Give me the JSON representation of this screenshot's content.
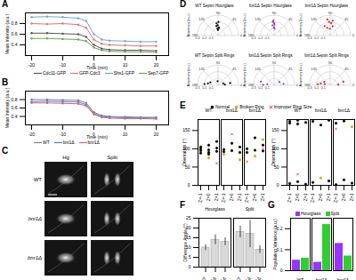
{
  "chart_data": [
    {
      "panel": "A",
      "type": "line",
      "x_label": "Time (min)",
      "y_label": "Mean Intensity (a.u.)",
      "x": [
        -20,
        -15,
        -10,
        -5,
        -2.5,
        0,
        2.5,
        5,
        10,
        15,
        20
      ],
      "xlim": [
        -22,
        24
      ],
      "xticks": [
        -20,
        -10,
        0,
        10,
        20
      ],
      "ylim": [
        0.2,
        1
      ],
      "yticks": [
        0.4,
        0.6,
        0.8
      ],
      "marker": "circle",
      "series": [
        {
          "name": "Cdc11-GFP",
          "color": "#555555",
          "values": [
            0.62,
            0.62,
            0.61,
            0.6,
            0.55,
            0.4,
            0.33,
            0.31,
            0.3,
            0.3,
            0.29
          ]
        },
        {
          "name": "GFP-Cdc3",
          "color": "#e8736c",
          "values": [
            0.8,
            0.79,
            0.8,
            0.78,
            0.72,
            0.5,
            0.42,
            0.4,
            0.39,
            0.38,
            0.38
          ]
        },
        {
          "name": "Shs1-GFP",
          "color": "#6fa8dc",
          "values": [
            0.92,
            0.93,
            0.92,
            0.9,
            0.85,
            0.6,
            0.5,
            0.48,
            0.47,
            0.46,
            0.46
          ]
        },
        {
          "name": "Sep7-GFP",
          "color": "#6aa84f",
          "values": [
            0.52,
            0.52,
            0.51,
            0.5,
            0.47,
            0.35,
            0.3,
            0.28,
            0.27,
            0.27,
            0.26
          ]
        }
      ]
    },
    {
      "panel": "B",
      "type": "line",
      "x_label": "Time (min)",
      "y_label": "Mean Intensity (a.u.)",
      "x": [
        -20,
        -15,
        -10,
        -5,
        -2.5,
        0,
        2.5,
        5,
        10,
        15,
        20
      ],
      "xlim": [
        -22,
        24
      ],
      "xticks": [
        -20,
        -10,
        0,
        10,
        20
      ],
      "ylim": [
        0.2,
        1
      ],
      "yticks": [
        0.4,
        0.6,
        0.8
      ],
      "marker": "circle",
      "series": [
        {
          "name": "WT",
          "color": "#808080",
          "values": [
            0.8,
            0.8,
            0.79,
            0.78,
            0.72,
            0.5,
            0.42,
            0.4,
            0.39,
            0.38,
            0.38
          ]
        },
        {
          "name": "bni1Δ",
          "color": "#4a86e8",
          "values": [
            0.75,
            0.76,
            0.75,
            0.74,
            0.68,
            0.47,
            0.4,
            0.38,
            0.37,
            0.37,
            0.36
          ]
        },
        {
          "name": "bnr1Δ",
          "color": "#e06666",
          "values": [
            0.72,
            0.72,
            0.71,
            0.7,
            0.65,
            0.45,
            0.38,
            0.36,
            0.35,
            0.35,
            0.34
          ]
        }
      ]
    },
    {
      "panel": "C",
      "type": "image",
      "categories": [
        "Hg",
        "Split"
      ],
      "rows": [
        "WT",
        "bni1Δ",
        "bnr1Δ"
      ]
    },
    {
      "panel": "D",
      "type": "polar",
      "y_label": "Anisotropy (a.u.)",
      "rlim": [
        0,
        0.3
      ],
      "rticks": [
        0.1,
        0.2,
        0.3
      ],
      "theta_ticks": [
        0,
        45,
        90,
        135,
        180
      ],
      "series": [
        {
          "name": "WT Septin Hourglass",
          "color": "#000000",
          "points": [
            [
              85,
              0.12
            ],
            [
              92,
              0.15
            ],
            [
              95,
              0.1
            ],
            [
              88,
              0.2
            ],
            [
              100,
              0.14
            ],
            [
              90,
              0.08
            ],
            [
              97,
              0.18
            ],
            [
              83,
              0.11
            ]
          ]
        },
        {
          "name": "bni1Δ Septin Hourglass",
          "color": "#9933cc",
          "points": [
            [
              88,
              0.16
            ],
            [
              91,
              0.12
            ],
            [
              95,
              0.2
            ],
            [
              86,
              0.1
            ],
            [
              99,
              0.15
            ],
            [
              93,
              0.22
            ],
            [
              89,
              0.18
            ]
          ]
        },
        {
          "name": "bnr1Δ Septin Hourglass",
          "color": "#e41a1c",
          "points": [
            [
              75,
              0.14
            ],
            [
              95,
              0.2
            ],
            [
              110,
              0.12
            ],
            [
              85,
              0.18
            ],
            [
              100,
              0.24
            ],
            [
              92,
              0.1
            ],
            [
              120,
              0.16
            ],
            [
              80,
              0.22
            ]
          ]
        },
        {
          "name": "WT Septin Split Rings",
          "color": "#000000",
          "points": [
            [
              5,
              0.1
            ],
            [
              170,
              0.15
            ],
            [
              20,
              0.08
            ],
            [
              175,
              0.2
            ],
            [
              95,
              0.06
            ],
            [
              160,
              0.12
            ],
            [
              10,
              0.18
            ]
          ]
        },
        {
          "name": "bni1Δ Septin Split Rings",
          "color": "#9933cc",
          "points": [
            [
              8,
              0.14
            ],
            [
              172,
              0.1
            ],
            [
              165,
              0.2
            ],
            [
              30,
              0.09
            ],
            [
              178,
              0.16
            ]
          ]
        },
        {
          "name": "bnr1Δ Septin Split Rings",
          "color": "#e41a1c",
          "points": [
            [
              4,
              0.12
            ],
            [
              176,
              0.18
            ],
            [
              15,
              0.2
            ],
            [
              168,
              0.08
            ],
            [
              150,
              0.1
            ],
            [
              170,
              0.14
            ]
          ]
        }
      ]
    },
    {
      "panel": "E",
      "type": "strip",
      "y_label": "Orientation (°)",
      "facets": [
        "WT",
        "bni1Δ",
        "bnr1Δ"
      ],
      "categories": [
        "Z=-1",
        "Z=0",
        "Z=1"
      ],
      "ylim": [
        0,
        180
      ],
      "yticks": [
        0,
        50,
        100,
        150
      ],
      "legend": "top",
      "series": [
        {
          "name": "Normal",
          "color": "#000000",
          "marker": "circle",
          "points": [
            [
              [
                "WT",
                "Z=-1",
                95
              ],
              [
                "WT",
                "Z=-1",
                100
              ],
              [
                "WT",
                "Z=-1",
                88
              ],
              [
                "WT",
                "Z=-1",
                105
              ],
              [
                "WT",
                "Z=0",
                97
              ],
              [
                "WT",
                "Z=0",
                90
              ],
              [
                "WT",
                "Z=0",
                110
              ],
              [
                "WT",
                "Z=0",
                85
              ],
              [
                "WT",
                "Z=1",
                93
              ],
              [
                "WT",
                "Z=1",
                102
              ],
              [
                "WT",
                "Z=1",
                120
              ],
              [
                "bni1Δ",
                "Z=-1",
                92
              ],
              [
                "bni1Δ",
                "Z=-1",
                98
              ],
              [
                "bni1Δ",
                "Z=0",
                95
              ],
              [
                "bni1Δ",
                "Z=0",
                115
              ],
              [
                "bni1Δ",
                "Z=1",
                90
              ],
              [
                "bni1Δ",
                "Z=1",
                105
              ],
              [
                "bnr1Δ",
                "Z=-1",
                100
              ],
              [
                "bnr1Δ",
                "Z=-1",
                90
              ],
              [
                "bnr1Δ",
                "Z=0",
                96
              ],
              [
                "bnr1Δ",
                "Z=0",
                130
              ],
              [
                "bnr1Δ",
                "Z=1",
                94
              ],
              [
                "bnr1Δ",
                "Z=1",
                110
              ]
            ],
            [
              [
                "WT",
                "Z=-1",
                5
              ],
              [
                "WT",
                "Z=-1",
                170
              ],
              [
                "WT",
                "Z=-1",
                175
              ],
              [
                "WT",
                "Z=0",
                10
              ],
              [
                "WT",
                "Z=0",
                168
              ],
              [
                "WT",
                "Z=0",
                178
              ],
              [
                "WT",
                "Z=1",
                3
              ],
              [
                "WT",
                "Z=1",
                172
              ],
              [
                "bni1Δ",
                "Z=-1",
                8
              ],
              [
                "bni1Δ",
                "Z=-1",
                175
              ],
              [
                "bni1Δ",
                "Z=0",
                165
              ],
              [
                "bni1Δ",
                "Z=1",
                12
              ],
              [
                "bni1Δ",
                "Z=1",
                178
              ],
              [
                "bnr1Δ",
                "Z=-1",
                2
              ],
              [
                "bnr1Δ",
                "Z=-1",
                170
              ],
              [
                "bnr1Δ",
                "Z=0",
                15
              ],
              [
                "bnr1Δ",
                "Z=0",
                176
              ],
              [
                "bnr1Δ",
                "Z=1",
                6
              ]
            ]
          ]
        },
        {
          "name": "Broken Ring",
          "color": "#e69f00",
          "marker": "circle",
          "points": [
            [
              [
                "WT",
                "Z=0",
                75
              ],
              [
                "bni1Δ",
                "Z=-1",
                85
              ],
              [
                "bni1Δ",
                "Z=1",
                70
              ],
              [
                "bnr1Δ",
                "Z=0",
                80
              ],
              [
                "bnr1Δ",
                "Z=1",
                125
              ]
            ],
            [
              [
                "bni1Δ",
                "Z=0",
                20
              ],
              [
                "bnr1Δ",
                "Z=1",
                160
              ]
            ]
          ]
        },
        {
          "name": "Improper Ring Size",
          "color": "#e41a1c",
          "marker": "times",
          "points": [
            [
              [
                "WT",
                "Z=1",
                60
              ],
              [
                "bni1Δ",
                "Z=0",
                140
              ],
              [
                "bnr1Δ",
                "Z=-1",
                65
              ],
              [
                "bnr1Δ",
                "Z=1",
                100
              ]
            ],
            [
              [
                "WT",
                "Z=0",
                30
              ],
              [
                "bnr1Δ",
                "Z=-1",
                155
              ]
            ]
          ]
        }
      ]
    },
    {
      "panel": "F",
      "type": "bar",
      "y_label": "Difference Angle (°)",
      "facets": [
        "Hourglass",
        "Split"
      ],
      "categories": [
        "WT",
        "bni1Δ",
        "bnr1Δ"
      ],
      "values": [
        [
          10,
          14,
          13
        ],
        [
          18,
          17,
          9
        ]
      ],
      "errors": [
        [
          1.5,
          2.5,
          2
        ],
        [
          3,
          7,
          2
        ]
      ],
      "ylim": [
        0,
        25
      ],
      "yticks": [
        0,
        5,
        10,
        15,
        20,
        25
      ],
      "color": "#d9d9d9"
    },
    {
      "panel": "G",
      "type": "bar",
      "y_label": "Population Variance (a.u.)",
      "categories": [
        "WT",
        "bni1Δ",
        "bnr1Δ"
      ],
      "ylim": [
        0,
        0.25
      ],
      "yticks": [
        0,
        0.1,
        0.2
      ],
      "legend": "top",
      "series": [
        {
          "name": "Hourglass",
          "color": "#9933ff",
          "values": [
            0.05,
            0.04,
            0.13
          ]
        },
        {
          "name": "Split",
          "color": "#33cc33",
          "values": [
            0.06,
            0.22,
            0.07
          ]
        }
      ]
    }
  ]
}
